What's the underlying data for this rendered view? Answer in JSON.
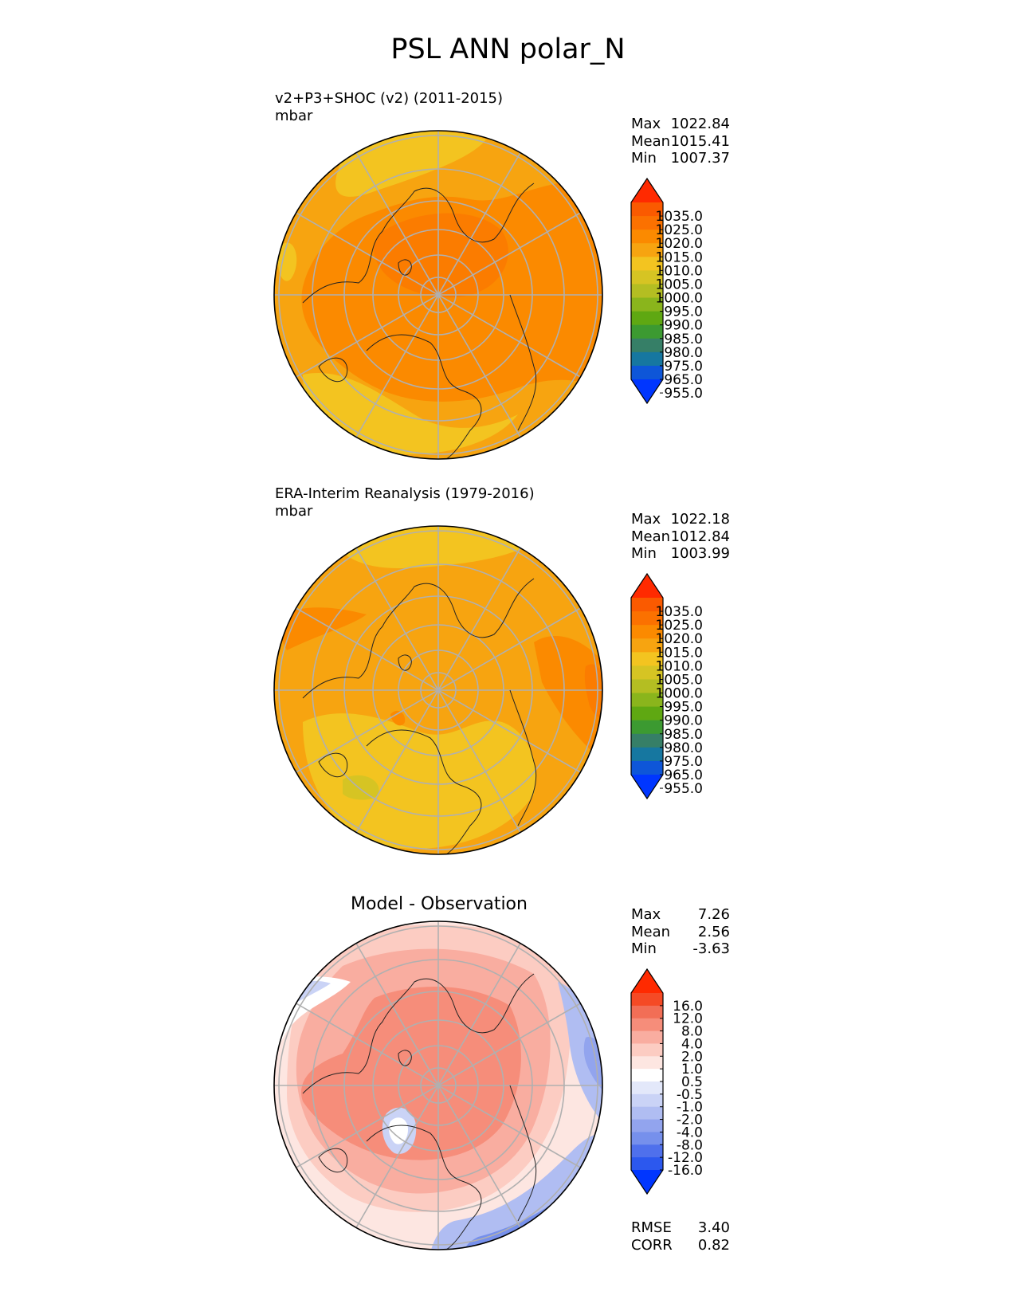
{
  "title": "PSL ANN polar_N",
  "colors": {
    "abs_levels": [
      "#ff2a00",
      "#fa5a00",
      "#fb7100",
      "#fb8a00",
      "#f7a410",
      "#f3c420",
      "#d6c423",
      "#b4be22",
      "#8ab51c",
      "#5fa812",
      "#3c9a31",
      "#367f67",
      "#1677a0",
      "#0e56d8",
      "#0036ff"
    ],
    "diff_levels": [
      "#ff2a00",
      "#f54a25",
      "#f26e56",
      "#f68d7a",
      "#f9ada0",
      "#fcccc2",
      "#fde6e1",
      "#ffffff",
      "#e3e8fa",
      "#cad3f6",
      "#b0bdf2",
      "#92a4ee",
      "#7690ec",
      "#4f70ec",
      "#2c58ee",
      "#0036ff"
    ]
  },
  "panels": [
    {
      "id": "test",
      "title_line1": "v2+P3+SHOC (v2) (2011-2015)",
      "units": "mbar",
      "stats": {
        "max_label": "Max",
        "max": "1022.84",
        "mean_label": "Mean",
        "mean": "1015.41",
        "min_label": "Min",
        "min": "1007.37"
      },
      "colorbar_ticks": [
        "1035.0",
        "1025.0",
        "1020.0",
        "1015.0",
        "1010.0",
        "1005.0",
        "1000.0",
        "995.0",
        "990.0",
        "985.0",
        "980.0",
        "975.0",
        "965.0",
        "955.0"
      ]
    },
    {
      "id": "ref",
      "title_line1": "ERA-Interim Reanalysis (1979-2016)",
      "units": "mbar",
      "stats": {
        "max_label": "Max",
        "max": "1022.18",
        "mean_label": "Mean",
        "mean": "1012.84",
        "min_label": "Min",
        "min": "1003.99"
      },
      "colorbar_ticks": [
        "1035.0",
        "1025.0",
        "1020.0",
        "1015.0",
        "1010.0",
        "1005.0",
        "1000.0",
        "995.0",
        "990.0",
        "985.0",
        "980.0",
        "975.0",
        "965.0",
        "955.0"
      ]
    },
    {
      "id": "diff",
      "title": "Model - Observation",
      "stats": {
        "max_label": "Max",
        "max": "7.26",
        "mean_label": "Mean",
        "mean": "2.56",
        "min_label": "Min",
        "min": "-3.63"
      },
      "extra_stats": {
        "rmse_label": "RMSE",
        "rmse": "3.40",
        "corr_label": "CORR",
        "corr": "0.82"
      },
      "colorbar_ticks": [
        "16.0",
        "12.0",
        "8.0",
        "4.0",
        "2.0",
        "1.0",
        "0.5",
        "-0.5",
        "-1.0",
        "-2.0",
        "-4.0",
        "-8.0",
        "-12.0",
        "-16.0"
      ]
    }
  ],
  "chart_data": [
    {
      "type": "heatmap",
      "projection": "north polar stereographic",
      "variable": "PSL",
      "season": "ANN",
      "title": "v2+P3+SHOC (v2) (2011-2015)",
      "units": "mbar",
      "contour_levels": [
        955,
        965,
        975,
        980,
        985,
        990,
        995,
        1000,
        1005,
        1010,
        1015,
        1020,
        1025,
        1035
      ],
      "max": 1022.84,
      "mean": 1015.41,
      "min": 1007.37
    },
    {
      "type": "heatmap",
      "projection": "north polar stereographic",
      "variable": "PSL",
      "season": "ANN",
      "title": "ERA-Interim Reanalysis (1979-2016)",
      "units": "mbar",
      "contour_levels": [
        955,
        965,
        975,
        980,
        985,
        990,
        995,
        1000,
        1005,
        1010,
        1015,
        1020,
        1025,
        1035
      ],
      "max": 1022.18,
      "mean": 1012.84,
      "min": 1003.99
    },
    {
      "type": "heatmap",
      "projection": "north polar stereographic",
      "title": "Model - Observation",
      "contour_levels": [
        -16,
        -12,
        -8,
        -4,
        -2,
        -1,
        -0.5,
        0.5,
        1,
        2,
        4,
        8,
        12,
        16
      ],
      "max": 7.26,
      "mean": 2.56,
      "min": -3.63,
      "rmse": 3.4,
      "corr": 0.82
    }
  ]
}
